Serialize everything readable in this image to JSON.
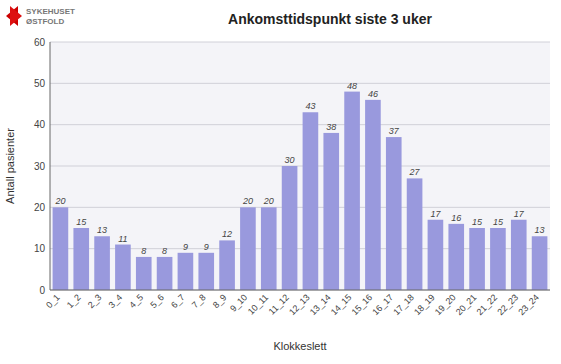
{
  "chart_data": {
    "type": "bar",
    "title": "Ankomsttidspunkt siste 3 uker",
    "xlabel": "Klokkeslett",
    "ylabel": "Antall pasienter",
    "annotations": [
      "SYKEHUSET",
      "ØSTFOLD"
    ],
    "categories": [
      "0_1",
      "1_2",
      "2_3",
      "3_4",
      "4_5",
      "5_6",
      "6_7",
      "7_8",
      "8_9",
      "9_10",
      "10_11",
      "11_12",
      "12_13",
      "13_14",
      "14_15",
      "15_16",
      "16_17",
      "17_18",
      "18_19",
      "19_20",
      "20_21",
      "21_22",
      "22_23",
      "23_24"
    ],
    "values": [
      20,
      15,
      13,
      11,
      8,
      8,
      9,
      9,
      12,
      20,
      20,
      30,
      43,
      38,
      48,
      46,
      37,
      27,
      17,
      16,
      15,
      15,
      17,
      13
    ],
    "color": "#9999dd",
    "ylim": [
      0,
      60
    ],
    "yticks": [
      0,
      10,
      20,
      30,
      40,
      50,
      60
    ],
    "grid": true,
    "data_labels": true
  }
}
